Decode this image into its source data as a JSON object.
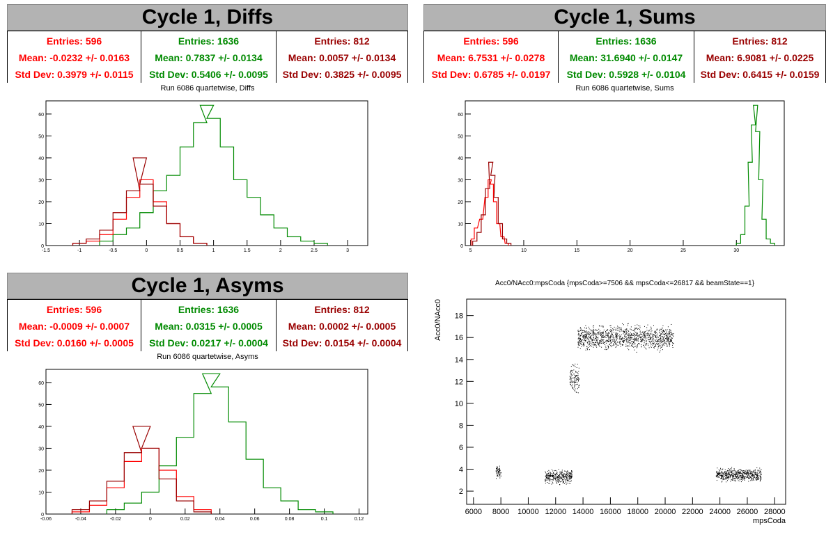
{
  "colors": {
    "red": "#ff0000",
    "green": "#008a00",
    "darkred": "#990000",
    "banner": "#b3b3b3"
  },
  "panels": {
    "diffs": {
      "title": "Cycle 1, Diffs",
      "subtitle": "Run 6086 quartetwise, Diffs",
      "stats": [
        {
          "entries": "Entries: 596",
          "mean": "Mean: -0.0232 +/- 0.0163",
          "std": "Std Dev: 0.3979 +/- 0.0115"
        },
        {
          "entries": "Entries: 1636",
          "mean": "Mean: 0.7837 +/- 0.0134",
          "std": "Std Dev: 0.5406 +/- 0.0095"
        },
        {
          "entries": "Entries: 812",
          "mean": "Mean: 0.0057 +/- 0.0134",
          "std": "Std Dev: 0.3825 +/- 0.0095"
        }
      ]
    },
    "sums": {
      "title": "Cycle 1, Sums",
      "subtitle": "Run 6086 quartetwise, Sums",
      "stats": [
        {
          "entries": "Entries: 596",
          "mean": "Mean: 6.7531 +/- 0.0278",
          "std": "Std Dev: 0.6785 +/- 0.0197"
        },
        {
          "entries": "Entries: 1636",
          "mean": "Mean: 31.6940 +/- 0.0147",
          "std": "Std Dev: 0.5928 +/- 0.0104"
        },
        {
          "entries": "Entries: 812",
          "mean": "Mean: 6.9081 +/- 0.0225",
          "std": "Std Dev: 0.6415 +/- 0.0159"
        }
      ]
    },
    "asyms": {
      "title": "Cycle 1, Asyms",
      "subtitle": "Run 6086 quartetwise, Asyms",
      "stats": [
        {
          "entries": "Entries: 596",
          "mean": "Mean: -0.0009 +/- 0.0007",
          "std": "Std Dev: 0.0160 +/- 0.0005"
        },
        {
          "entries": "Entries: 1636",
          "mean": "Mean: 0.0315 +/- 0.0005",
          "std": "Std Dev: 0.0217 +/- 0.0004"
        },
        {
          "entries": "Entries: 812",
          "mean": "Mean: 0.0002 +/- 0.0005",
          "std": "Std Dev: 0.0154 +/- 0.0004"
        }
      ]
    },
    "scatter": {
      "title": "Acc0/NAcc0:mpsCoda {mpsCoda>=7506 && mpsCoda<=26817 && beamState==1}"
    }
  },
  "chart_data": [
    {
      "type": "line",
      "title": "Run 6086 quartetwise, Diffs",
      "xlim": [
        -1.5,
        3.3
      ],
      "ylim": [
        0,
        66
      ],
      "xticks": [
        -1.5,
        -1,
        -0.5,
        0,
        0.5,
        1,
        1.5,
        2,
        2.5,
        3
      ],
      "xticklabels": [
        "-1.5",
        "-1",
        "-0.5",
        "0",
        "0.5",
        "1",
        "1.5",
        "2",
        "2.5",
        "3"
      ],
      "yticks": [
        0,
        10,
        20,
        30,
        40,
        50,
        60
      ],
      "series": [
        {
          "color": "green",
          "x": [
            -0.6,
            -0.4,
            -0.2,
            0,
            0.2,
            0.4,
            0.6,
            0.8,
            0.9,
            1.0,
            1.2,
            1.4,
            1.6,
            1.8,
            2.0,
            2.2,
            2.4,
            2.6
          ],
          "y": [
            2,
            5,
            8,
            15,
            25,
            32,
            45,
            56,
            64,
            58,
            45,
            30,
            22,
            14,
            8,
            4,
            2,
            1
          ]
        },
        {
          "color": "red",
          "x": [
            -1.0,
            -0.8,
            -0.6,
            -0.4,
            -0.2,
            0,
            0.2,
            0.4,
            0.6,
            0.8
          ],
          "y": [
            1,
            2,
            5,
            12,
            22,
            30,
            20,
            10,
            4,
            1
          ]
        },
        {
          "color": "darkred",
          "x": [
            -1.0,
            -0.8,
            -0.6,
            -0.4,
            -0.2,
            -0.1,
            0,
            0.2,
            0.4,
            0.6,
            0.8
          ],
          "y": [
            1,
            3,
            7,
            15,
            25,
            40,
            28,
            18,
            10,
            4,
            1
          ]
        }
      ]
    },
    {
      "type": "line",
      "title": "Run 6086 quartetwise, Sums",
      "xlim": [
        4.5,
        34.5
      ],
      "ylim": [
        0,
        66
      ],
      "xticks": [
        5,
        10,
        15,
        20,
        25,
        30
      ],
      "xticklabels": [
        "5",
        "10",
        "15",
        "20",
        "25",
        "30"
      ],
      "yticks": [
        0,
        10,
        20,
        30,
        40,
        50,
        60
      ],
      "series": [
        {
          "color": "red",
          "x": [
            5.2,
            5.5,
            6.0,
            6.5,
            6.8,
            7.0,
            7.3,
            7.6,
            8.0,
            8.4
          ],
          "y": [
            3,
            8,
            12,
            22,
            30,
            28,
            20,
            10,
            4,
            1
          ]
        },
        {
          "color": "darkred",
          "x": [
            5.4,
            5.8,
            6.2,
            6.6,
            6.9,
            7.1,
            7.4,
            7.8,
            8.2,
            8.6
          ],
          "y": [
            2,
            6,
            14,
            26,
            38,
            32,
            22,
            10,
            3,
            1
          ]
        },
        {
          "color": "green",
          "x": [
            30.2,
            30.6,
            31.0,
            31.3,
            31.6,
            31.8,
            32.0,
            32.3,
            32.6,
            33.0,
            33.4
          ],
          "y": [
            1,
            5,
            18,
            38,
            55,
            64,
            52,
            30,
            12,
            3,
            1
          ]
        }
      ]
    },
    {
      "type": "line",
      "title": "Run 6086 quartetwise, Asyms",
      "xlim": [
        -0.06,
        0.125
      ],
      "ylim": [
        0,
        66
      ],
      "xticks": [
        -0.06,
        -0.04,
        -0.02,
        0,
        0.02,
        0.04,
        0.06,
        0.08,
        0.1,
        0.12
      ],
      "xticklabels": [
        "-0.06",
        "-0.04",
        "-0.02",
        "0",
        "0.02",
        "0.04",
        "0.06",
        "0.08",
        "0.1",
        "0.12"
      ],
      "yticks": [
        0,
        10,
        20,
        30,
        40,
        50,
        60
      ],
      "series": [
        {
          "color": "green",
          "x": [
            -0.02,
            -0.01,
            0,
            0.01,
            0.02,
            0.03,
            0.035,
            0.04,
            0.05,
            0.06,
            0.07,
            0.08,
            0.09,
            0.1
          ],
          "y": [
            2,
            5,
            10,
            22,
            35,
            55,
            64,
            58,
            42,
            25,
            12,
            6,
            2,
            1
          ]
        },
        {
          "color": "red",
          "x": [
            -0.04,
            -0.03,
            -0.02,
            -0.01,
            0,
            0.01,
            0.02,
            0.03
          ],
          "y": [
            1,
            4,
            12,
            24,
            30,
            20,
            8,
            2
          ]
        },
        {
          "color": "darkred",
          "x": [
            -0.04,
            -0.03,
            -0.02,
            -0.01,
            -0.005,
            0,
            0.01,
            0.02,
            0.03
          ],
          "y": [
            2,
            6,
            15,
            28,
            40,
            30,
            16,
            6,
            1
          ]
        }
      ]
    },
    {
      "type": "scatter",
      "title": "Acc0/NAcc0:mpsCoda {mpsCoda>=7506 && mpsCoda<=26817 && beamState==1}",
      "xlabel": "mpsCoda",
      "ylabel": "Acc0/NAcc0",
      "xlim": [
        5500,
        28800
      ],
      "ylim": [
        0.8,
        19.5
      ],
      "xticks": [
        6000,
        8000,
        10000,
        12000,
        14000,
        16000,
        18000,
        20000,
        22000,
        24000,
        26000,
        28000
      ],
      "xticklabels": [
        "6000",
        "8000",
        "10000",
        "12000",
        "14000",
        "16000",
        "18000",
        "20000",
        "22000",
        "24000",
        "26000",
        "28000"
      ],
      "yticks": [
        2,
        4,
        6,
        8,
        10,
        12,
        14,
        16,
        18
      ],
      "yticklabels": [
        "2",
        "4",
        "6",
        "8",
        "10",
        "12",
        "14",
        "16",
        "18"
      ],
      "clusters": [
        {
          "x": [
            7600,
            8000
          ],
          "y": [
            3.0,
            4.5
          ]
        },
        {
          "x": [
            11200,
            13200
          ],
          "y": [
            2.5,
            4.2
          ]
        },
        {
          "x": [
            13000,
            13700
          ],
          "y": [
            10.5,
            14.0
          ]
        },
        {
          "x": [
            13600,
            20600
          ],
          "y": [
            14.5,
            17.5
          ]
        },
        {
          "x": [
            23700,
            27000
          ],
          "y": [
            2.7,
            4.3
          ]
        }
      ]
    }
  ]
}
